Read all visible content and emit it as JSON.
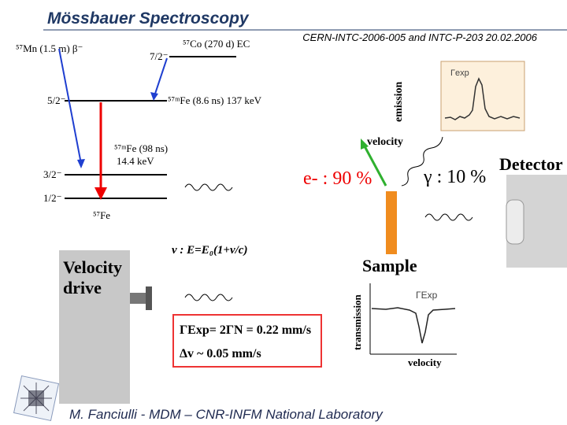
{
  "header": {
    "title": "Mössbauer Spectroscopy",
    "reference": "CERN-INTC-2006-005 and INTC-P-203 20.02.2006"
  },
  "decay_scheme": {
    "parent_mn": "⁵⁷Mn (1.5 m) β⁻",
    "parent_co": "⁵⁷Co (270 d) EC",
    "level_7_2": "7/2⁻",
    "level_5_2": "5/2⁻",
    "state_137": "⁵⁷ᵐFe (8.6 ns) 137 keV",
    "state_14_name": "⁵⁷ᵐFe (98 ns)",
    "state_14_energy": "14.4 keV",
    "level_3_2": "3/2⁻",
    "level_1_2": "1/2⁻",
    "ground": "⁵⁷Fe"
  },
  "emission_plot": {
    "y_label": "emission",
    "peak_label": "Γexp",
    "x_label": "velocity"
  },
  "decay_modes": {
    "electrons": "e- : 90 %",
    "gamma": "γ : 10 %"
  },
  "detector": "Detector",
  "doppler": "v : E=E₀(1+v/c)",
  "velocity_drive": {
    "line1": "Velocity",
    "line2": "drive"
  },
  "sample": "Sample",
  "transmission_plot": {
    "y_label": "transmission",
    "dip_label": "ΓExp",
    "x_label": "velocity"
  },
  "formula": {
    "line1": "ΓExp= 2ΓN = 0.22 mm/s",
    "line2": "Δv ~ 0.05 mm/s"
  },
  "footer": "M. Fanciulli - MDM – CNR-INFM National Laboratory"
}
